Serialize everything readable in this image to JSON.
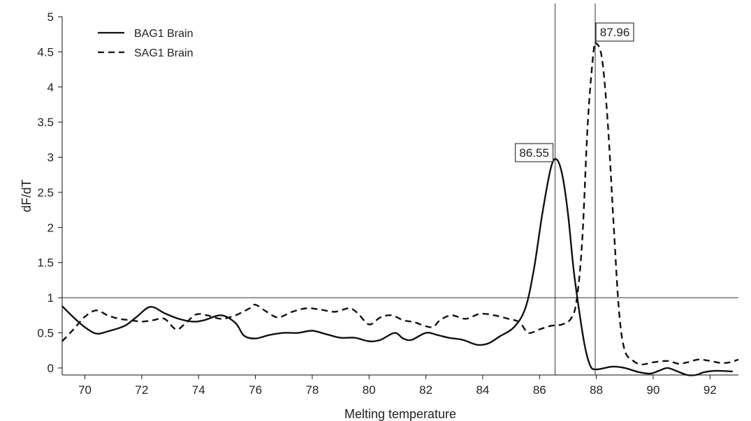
{
  "chart_data": {
    "type": "line",
    "title": "",
    "xlabel": "Melting temperature",
    "ylabel": "dF/dT",
    "xlim": [
      69.2,
      93.0
    ],
    "ylim": [
      -0.1,
      5
    ],
    "xticks": [
      70,
      72,
      74,
      76,
      78,
      80,
      82,
      84,
      86,
      88,
      90,
      92
    ],
    "yticks": [
      0,
      0.5,
      1,
      1.5,
      2,
      2.5,
      3,
      3.5,
      4,
      4.5,
      5
    ],
    "xtick_labels": [
      "70",
      "72",
      "74",
      "76",
      "78",
      "80",
      "82",
      "84",
      "86",
      "88",
      "90",
      "92"
    ],
    "ytick_labels": [
      "0",
      "0.5",
      "1",
      "1.5",
      "2",
      "2.5",
      "3",
      "3.5",
      "4",
      "4.5",
      "5"
    ],
    "grid": false,
    "legend_position": "top-left",
    "threshold_line": {
      "y": 1
    },
    "vertical_lines": [
      86.55,
      87.96
    ],
    "annotations": [
      {
        "text": "86.55",
        "x": 86.55,
        "y": 2.97
      },
      {
        "text": "87.96",
        "x": 87.96,
        "y": 4.62
      }
    ],
    "series": [
      {
        "name": "BAG1 Brain",
        "style": "solid",
        "color": "#111111",
        "points": [
          [
            69.2,
            0.88
          ],
          [
            69.6,
            0.72
          ],
          [
            70.0,
            0.58
          ],
          [
            70.4,
            0.49
          ],
          [
            70.8,
            0.52
          ],
          [
            71.4,
            0.6
          ],
          [
            71.8,
            0.72
          ],
          [
            72.3,
            0.87
          ],
          [
            72.8,
            0.78
          ],
          [
            73.3,
            0.7
          ],
          [
            73.8,
            0.66
          ],
          [
            74.2,
            0.68
          ],
          [
            74.8,
            0.75
          ],
          [
            75.3,
            0.64
          ],
          [
            75.6,
            0.46
          ],
          [
            76.0,
            0.42
          ],
          [
            76.5,
            0.47
          ],
          [
            77.0,
            0.5
          ],
          [
            77.5,
            0.5
          ],
          [
            78.0,
            0.53
          ],
          [
            78.5,
            0.48
          ],
          [
            79.0,
            0.43
          ],
          [
            79.5,
            0.43
          ],
          [
            80.0,
            0.38
          ],
          [
            80.4,
            0.4
          ],
          [
            80.9,
            0.5
          ],
          [
            81.2,
            0.42
          ],
          [
            81.5,
            0.4
          ],
          [
            82.0,
            0.5
          ],
          [
            82.4,
            0.47
          ],
          [
            82.8,
            0.43
          ],
          [
            83.3,
            0.4
          ],
          [
            83.8,
            0.33
          ],
          [
            84.2,
            0.35
          ],
          [
            84.6,
            0.45
          ],
          [
            85.1,
            0.58
          ],
          [
            85.5,
            0.85
          ],
          [
            85.8,
            1.4
          ],
          [
            86.1,
            2.2
          ],
          [
            86.4,
            2.85
          ],
          [
            86.6,
            2.97
          ],
          [
            86.8,
            2.75
          ],
          [
            87.0,
            2.2
          ],
          [
            87.2,
            1.4
          ],
          [
            87.4,
            0.8
          ],
          [
            87.6,
            0.3
          ],
          [
            87.8,
            0.02
          ],
          [
            88.0,
            -0.02
          ],
          [
            88.3,
            0.0
          ],
          [
            88.6,
            0.02
          ],
          [
            89.0,
            0.0
          ],
          [
            89.5,
            -0.06
          ],
          [
            89.9,
            -0.08
          ],
          [
            90.2,
            -0.04
          ],
          [
            90.5,
            0.0
          ],
          [
            90.8,
            -0.04
          ],
          [
            91.2,
            -0.1
          ],
          [
            91.5,
            -0.1
          ],
          [
            91.8,
            -0.06
          ],
          [
            92.2,
            -0.04
          ],
          [
            92.8,
            -0.05
          ]
        ]
      },
      {
        "name": "SAG1 Brain",
        "style": "dashed",
        "color": "#111111",
        "points": [
          [
            69.2,
            0.38
          ],
          [
            69.6,
            0.55
          ],
          [
            70.0,
            0.73
          ],
          [
            70.4,
            0.82
          ],
          [
            70.8,
            0.75
          ],
          [
            71.2,
            0.7
          ],
          [
            71.6,
            0.68
          ],
          [
            72.0,
            0.66
          ],
          [
            72.4,
            0.68
          ],
          [
            72.8,
            0.7
          ],
          [
            73.2,
            0.55
          ],
          [
            73.5,
            0.62
          ],
          [
            73.9,
            0.76
          ],
          [
            74.3,
            0.75
          ],
          [
            74.8,
            0.7
          ],
          [
            75.3,
            0.75
          ],
          [
            75.8,
            0.85
          ],
          [
            76.0,
            0.9
          ],
          [
            76.4,
            0.8
          ],
          [
            76.8,
            0.72
          ],
          [
            77.3,
            0.8
          ],
          [
            77.8,
            0.85
          ],
          [
            78.3,
            0.83
          ],
          [
            78.8,
            0.8
          ],
          [
            79.3,
            0.85
          ],
          [
            79.6,
            0.78
          ],
          [
            80.0,
            0.62
          ],
          [
            80.4,
            0.72
          ],
          [
            80.8,
            0.75
          ],
          [
            81.2,
            0.68
          ],
          [
            81.6,
            0.65
          ],
          [
            82.2,
            0.58
          ],
          [
            82.5,
            0.68
          ],
          [
            82.9,
            0.75
          ],
          [
            83.4,
            0.7
          ],
          [
            83.9,
            0.77
          ],
          [
            84.4,
            0.75
          ],
          [
            84.9,
            0.7
          ],
          [
            85.3,
            0.65
          ],
          [
            85.6,
            0.5
          ],
          [
            86.0,
            0.55
          ],
          [
            86.4,
            0.6
          ],
          [
            86.8,
            0.62
          ],
          [
            87.1,
            0.7
          ],
          [
            87.3,
            0.95
          ],
          [
            87.5,
            1.8
          ],
          [
            87.7,
            3.5
          ],
          [
            87.9,
            4.5
          ],
          [
            88.0,
            4.62
          ],
          [
            88.2,
            4.4
          ],
          [
            88.4,
            3.5
          ],
          [
            88.6,
            2.1
          ],
          [
            88.8,
            0.8
          ],
          [
            89.0,
            0.25
          ],
          [
            89.3,
            0.1
          ],
          [
            89.6,
            0.05
          ],
          [
            90.0,
            0.08
          ],
          [
            90.5,
            0.1
          ],
          [
            90.9,
            0.06
          ],
          [
            91.2,
            0.08
          ],
          [
            91.6,
            0.12
          ],
          [
            92.0,
            0.1
          ],
          [
            92.4,
            0.07
          ],
          [
            92.7,
            0.08
          ],
          [
            93.0,
            0.12
          ]
        ]
      }
    ]
  }
}
